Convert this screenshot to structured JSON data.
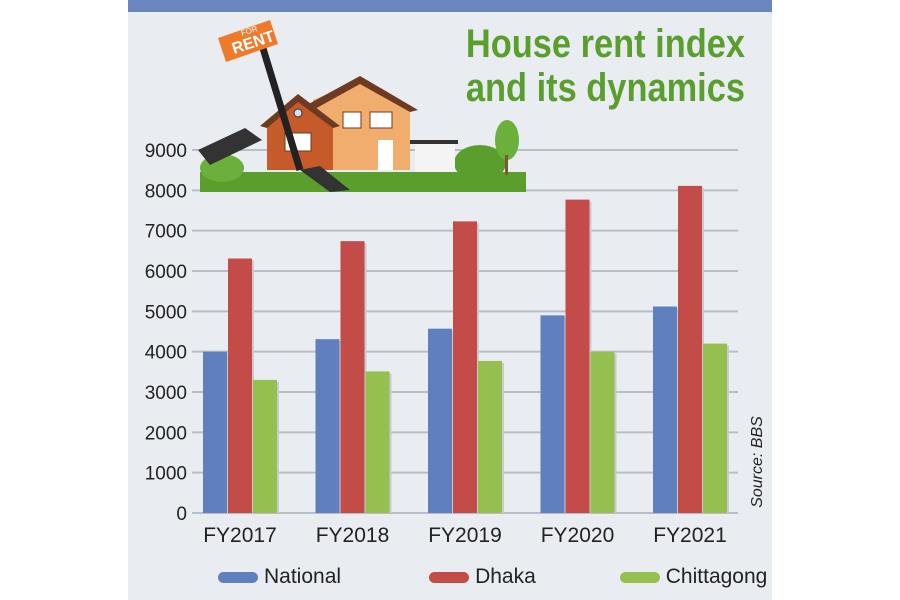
{
  "chart_data": {
    "type": "bar",
    "title": "House rent index and its dynamics",
    "title_lines": [
      "House rent index",
      "and its dynamics"
    ],
    "categories": [
      "FY2017",
      "FY2018",
      "FY2019",
      "FY2020",
      "FY2021"
    ],
    "series": [
      {
        "name": "National",
        "color": "#5f7fbf",
        "values": [
          4000,
          4310,
          4570,
          4900,
          5120
        ]
      },
      {
        "name": "Dhaka",
        "color": "#c34b48",
        "values": [
          6310,
          6740,
          7230,
          7770,
          8110
        ]
      },
      {
        "name": "Chittagong",
        "color": "#95c050",
        "values": [
          3300,
          3510,
          3770,
          4000,
          4200
        ]
      }
    ],
    "ylim": [
      0,
      9000
    ],
    "yticks": [
      0,
      1000,
      2000,
      3000,
      4000,
      5000,
      6000,
      7000,
      8000,
      9000
    ],
    "grid": true,
    "legend_placement": "bottom",
    "source": "Source: BBS",
    "sign_text": {
      "top": "FOR",
      "main": "RENT"
    }
  }
}
